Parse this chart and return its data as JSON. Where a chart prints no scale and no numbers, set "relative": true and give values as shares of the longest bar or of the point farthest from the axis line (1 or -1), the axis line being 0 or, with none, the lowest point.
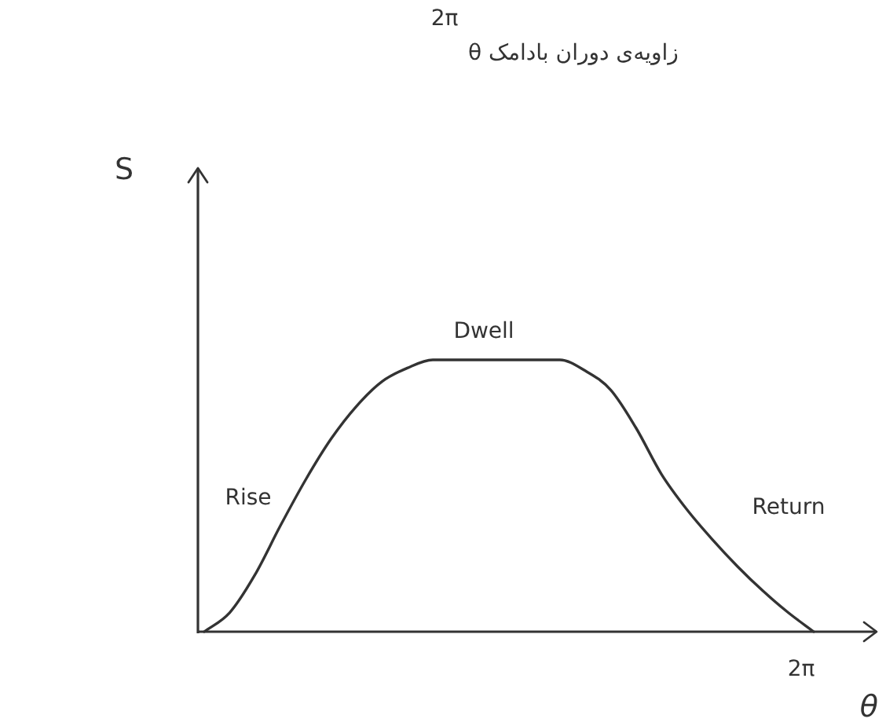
{
  "chart_data": {
    "type": "line",
    "xlabel": "θ",
    "relative": true,
    "annotations": [
      "2π",
      "θ زاویه‌ی دوران بادامک",
      "S",
      "Rise",
      "Dwell",
      "Return",
      "2π"
    ],
    "categories": [
      null,
      null,
      null,
      null,
      null,
      null,
      null,
      null,
      null,
      null,
      null,
      null,
      null,
      null,
      null,
      null,
      null,
      null,
      null,
      null,
      null,
      null,
      null,
      null,
      null
    ],
    "series": [
      {
        "color": "#333333",
        "values": [
          0,
          0.07,
          0.21,
          0.39,
          0.56,
          0.71,
          0.83,
          0.92,
          0.97,
          1,
          1,
          1,
          1,
          1,
          1,
          0.96,
          0.89,
          0.75,
          0.58,
          0.45,
          0.34,
          0.24,
          0.15,
          0.07,
          0
        ]
      }
    ]
  }
}
